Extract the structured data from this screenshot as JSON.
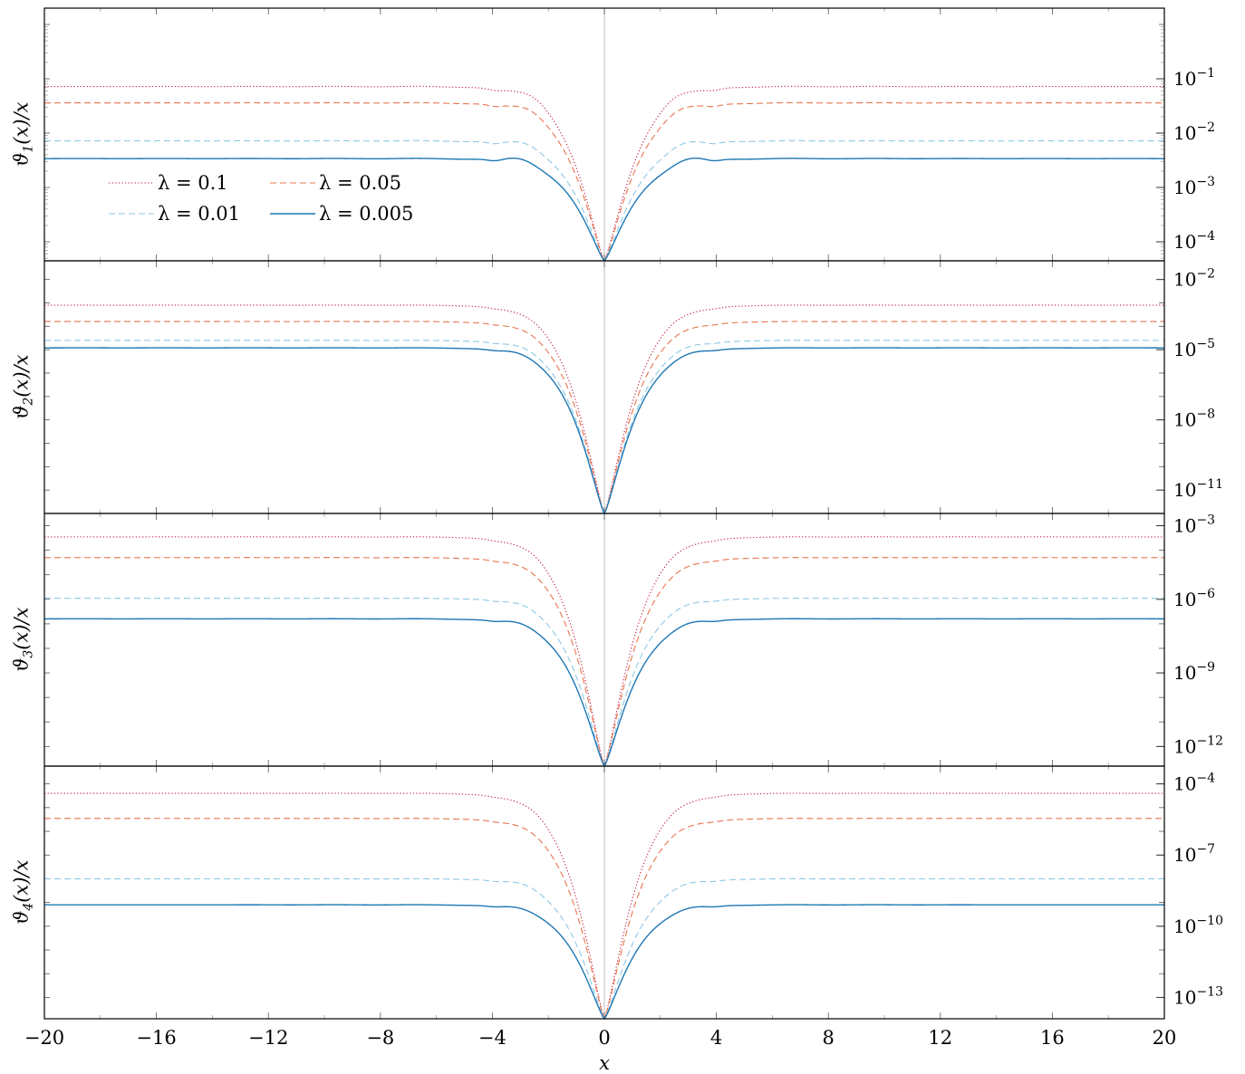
{
  "chart_data": {
    "type": "line",
    "xlabel": "x",
    "xlim": [
      -20,
      20
    ],
    "x_ticks": [
      -20,
      -16,
      -12,
      -8,
      -4,
      0,
      4,
      8,
      12,
      16,
      20
    ],
    "x_tick_labels": [
      "−20",
      "−16",
      "−12",
      "−8",
      "−4",
      "0",
      "4",
      "8",
      "12",
      "16",
      "20"
    ],
    "yscale": "log",
    "legend": {
      "placement": "top-left of first panel",
      "entries": [
        "λ = 0.1",
        "λ = 0.05",
        "λ = 0.01",
        "λ = 0.005"
      ]
    },
    "series_styles": [
      {
        "name": "λ = 0.1",
        "color": "#c0143c",
        "dash": "dotted"
      },
      {
        "name": "λ = 0.05",
        "color": "#e8744f",
        "dash": "dashed"
      },
      {
        "name": "λ = 0.01",
        "color": "#8ec7e4",
        "dash": "dashed"
      },
      {
        "name": "λ = 0.005",
        "color": "#1f77b4",
        "dash": "solid"
      }
    ],
    "panels": [
      {
        "ylabel_var": "ϑ",
        "ylabel_sub": "1",
        "ylabel_rest": "(x)/x",
        "ylim_log10": [
          -4.35,
          0.3
        ],
        "ytick_exponents": [
          -1,
          -2,
          -3,
          -4
        ],
        "ytick_labels": [
          "10−1",
          "10−2",
          "10−3",
          "10−4"
        ],
        "series": [
          {
            "name": "λ = 0.1",
            "plateau": 0.072,
            "bump": 0.018
          },
          {
            "name": "λ = 0.05",
            "plateau": 0.036,
            "bump": 0.009
          },
          {
            "name": "λ = 0.01",
            "plateau": 0.0072,
            "bump": 0.0018
          },
          {
            "name": "λ = 0.005",
            "plateau": 0.0034,
            "bump": 0.0008
          }
        ]
      },
      {
        "ylabel_var": "ϑ",
        "ylabel_sub": "2",
        "ylabel_rest": "(x)/x",
        "ylim_log10": [
          -12,
          -1.2
        ],
        "ytick_exponents": [
          -2,
          -5,
          -8,
          -11
        ],
        "ytick_labels": [
          "10−2",
          "10−5",
          "10−8",
          "10−11"
        ],
        "series": [
          {
            "name": "λ = 0.1",
            "plateau": 0.0008,
            "bump": 0.0002
          },
          {
            "name": "λ = 0.05",
            "plateau": 0.00016,
            "bump": 4e-05
          },
          {
            "name": "λ = 0.01",
            "plateau": 2.5e-05,
            "bump": 7e-06
          },
          {
            "name": "λ = 0.005",
            "plateau": 1.2e-05,
            "bump": 3e-06
          }
        ]
      },
      {
        "ylabel_var": "ϑ",
        "ylabel_sub": "3",
        "ylabel_rest": "(x)/x",
        "ylim_log10": [
          -12.8,
          -2.5
        ],
        "ytick_exponents": [
          -3,
          -6,
          -9,
          -12
        ],
        "ytick_labels": [
          "10−3",
          "10−6",
          "10−9",
          "10−12"
        ],
        "series": [
          {
            "name": "λ = 0.1",
            "plateau": 0.00035,
            "bump": 0.0001
          },
          {
            "name": "λ = 0.05",
            "plateau": 5e-05,
            "bump": 1.2e-05
          },
          {
            "name": "λ = 0.01",
            "plateau": 1.1e-06,
            "bump": 3e-07
          },
          {
            "name": "λ = 0.005",
            "plateau": 1.6e-07,
            "bump": 5e-08
          }
        ]
      },
      {
        "ylabel_var": "ϑ",
        "ylabel_sub": "4",
        "ylabel_rest": "(x)/x",
        "ylim_log10": [
          -13.9,
          -3.25
        ],
        "ytick_exponents": [
          -4,
          -7,
          -10,
          -13
        ],
        "ytick_labels": [
          "10−4",
          "10−7",
          "10−10",
          "10−13"
        ],
        "series": [
          {
            "name": "λ = 0.1",
            "plateau": 4e-05,
            "bump": 1e-05
          },
          {
            "name": "λ = 0.05",
            "plateau": 3.5e-06,
            "bump": 9e-07
          },
          {
            "name": "λ = 0.01",
            "plateau": 1e-08,
            "bump": 3e-09
          },
          {
            "name": "λ = 0.005",
            "plateau": 8e-10,
            "bump": 2e-10
          }
        ]
      }
    ]
  }
}
